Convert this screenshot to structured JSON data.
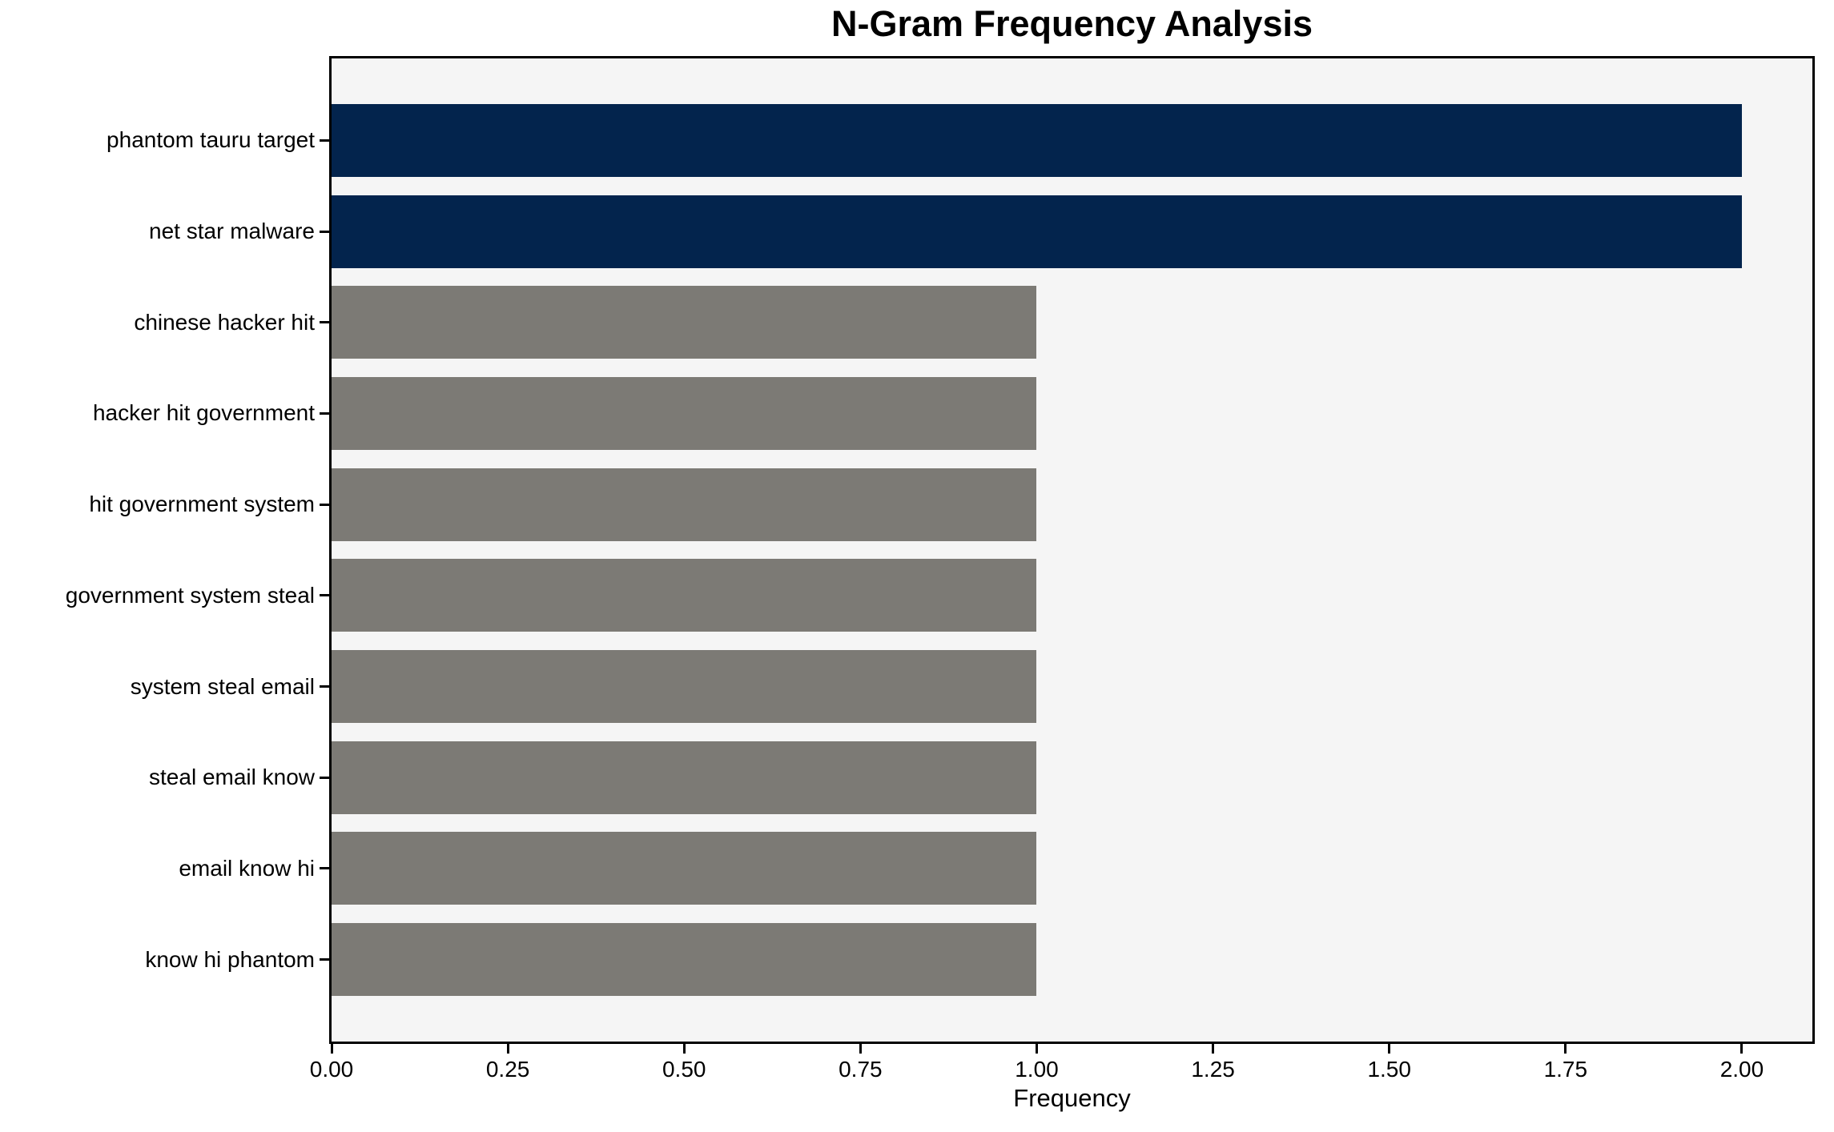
{
  "chart_data": {
    "type": "bar",
    "orientation": "horizontal",
    "title": "N-Gram Frequency Analysis",
    "xlabel": "Frequency",
    "ylabel": "",
    "categories": [
      "phantom tauru target",
      "net star malware",
      "chinese hacker hit",
      "hacker hit government",
      "hit government system",
      "government system steal",
      "system steal email",
      "steal email know",
      "email know hi",
      "know hi phantom"
    ],
    "values": [
      2.0,
      2.0,
      1.0,
      1.0,
      1.0,
      1.0,
      1.0,
      1.0,
      1.0,
      1.0
    ],
    "bar_colors": [
      "#03244d",
      "#03244d",
      "#7c7a75",
      "#7c7a75",
      "#7c7a75",
      "#7c7a75",
      "#7c7a75",
      "#7c7a75",
      "#7c7a75",
      "#7c7a75"
    ],
    "xlim": [
      0,
      2.1
    ],
    "xticks": [
      {
        "value": 0.0,
        "label": "0.00"
      },
      {
        "value": 0.25,
        "label": "0.25"
      },
      {
        "value": 0.5,
        "label": "0.50"
      },
      {
        "value": 0.75,
        "label": "0.75"
      },
      {
        "value": 1.0,
        "label": "1.00"
      },
      {
        "value": 1.25,
        "label": "1.25"
      },
      {
        "value": 1.5,
        "label": "1.50"
      },
      {
        "value": 1.75,
        "label": "1.75"
      },
      {
        "value": 2.0,
        "label": "2.00"
      }
    ],
    "grid": false,
    "legend": null,
    "colors": {
      "highlight_bar": "#03244d",
      "default_bar": "#7c7a75",
      "plot_background": "#f5f5f5",
      "figure_background": "#ffffff",
      "spine": "#000000",
      "text": "#000000"
    }
  }
}
